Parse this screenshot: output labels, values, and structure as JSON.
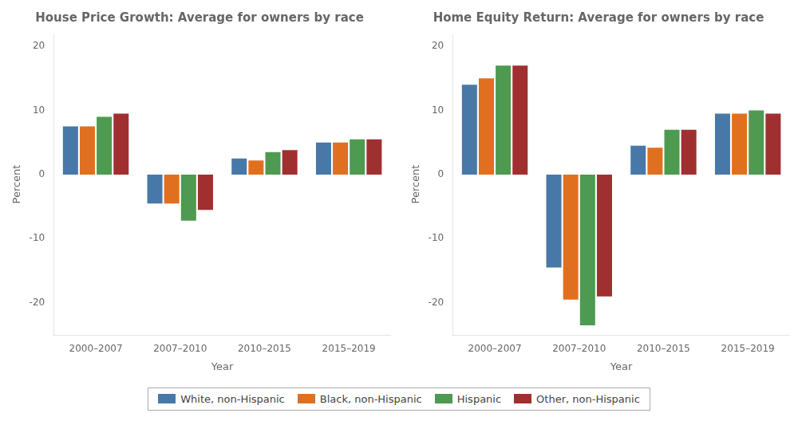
{
  "chart_data": [
    {
      "type": "bar",
      "title": "House Price Growth: Average for owners by race",
      "x_label": "Year",
      "y_label": "Percent",
      "categories": [
        "2000–2007",
        "2007–2010",
        "2010–2015",
        "2015–2019"
      ],
      "series": [
        {
          "name": "White, non-Hispanic",
          "color": "#4878A8",
          "values": [
            7.5,
            -4.5,
            2.5,
            5.0
          ]
        },
        {
          "name": "Black, non-Hispanic",
          "color": "#E07020",
          "values": [
            7.5,
            -4.5,
            2.2,
            5.0
          ]
        },
        {
          "name": "Hispanic",
          "color": "#4E9A50",
          "values": [
            9.0,
            -7.2,
            3.5,
            5.5
          ]
        },
        {
          "name": "Other, non-Hispanic",
          "color": "#A03030",
          "values": [
            9.5,
            -5.5,
            3.8,
            5.5
          ]
        }
      ],
      "ylim": [
        -25,
        22
      ],
      "yticks": [
        -20,
        -10,
        0,
        10,
        20
      ],
      "grid": false,
      "legend": "bottom"
    },
    {
      "type": "bar",
      "title": "Home Equity Return: Average for owners by race",
      "x_label": "Year",
      "y_label": "Percent",
      "categories": [
        "2000–2007",
        "2007–2010",
        "2010–2015",
        "2015–2019"
      ],
      "series": [
        {
          "name": "White, non-Hispanic",
          "color": "#4878A8",
          "values": [
            14.0,
            -14.5,
            4.5,
            9.5
          ]
        },
        {
          "name": "Black, non-Hispanic",
          "color": "#E07020",
          "values": [
            15.0,
            -19.5,
            4.2,
            9.5
          ]
        },
        {
          "name": "Hispanic",
          "color": "#4E9A50",
          "values": [
            17.0,
            -23.5,
            7.0,
            10.0
          ]
        },
        {
          "name": "Other, non-Hispanic",
          "color": "#A03030",
          "values": [
            17.0,
            -19.0,
            7.0,
            9.5
          ]
        }
      ],
      "ylim": [
        -25,
        22
      ],
      "yticks": [
        -20,
        -10,
        0,
        10,
        20
      ],
      "grid": false,
      "legend": "bottom"
    }
  ]
}
